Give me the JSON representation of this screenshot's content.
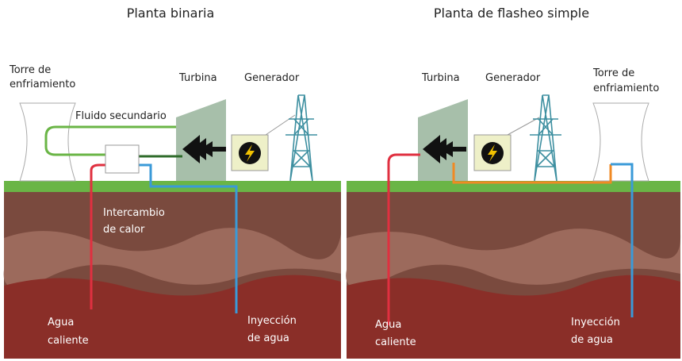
{
  "binary": {
    "title": "Planta binaria",
    "tower": [
      "Torre de",
      "enfriamiento"
    ],
    "turbine": "Turbina",
    "generator": "Generador",
    "secondary_fluid": "Fluido secundario",
    "heat_exchange": [
      "Intercambio",
      "de calor"
    ],
    "hot_water": [
      "Agua",
      "caliente"
    ],
    "injection": [
      "Inyección",
      "de agua"
    ]
  },
  "flash": {
    "title": "Planta de flasheo simple",
    "turbine": "Turbina",
    "generator": "Generador",
    "tower": [
      "Torre de",
      "enfriamiento"
    ],
    "hot_water": [
      "Agua",
      "caliente"
    ],
    "injection": [
      "Inyección",
      "de agua"
    ]
  }
}
